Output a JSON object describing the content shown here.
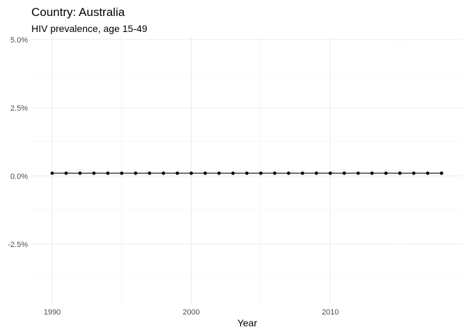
{
  "chart_data": {
    "type": "line",
    "title": "Country: Australia",
    "subtitle": "HIV prevalence, age 15-49",
    "xlabel": "Year",
    "ylabel": "",
    "xlim": [
      1988.5,
      2019.5
    ],
    "ylim": [
      -4.7,
      5.1
    ],
    "x_ticks": [
      1990,
      2000,
      2010
    ],
    "x_minor_ticks": [
      1995,
      2005,
      2015
    ],
    "y_ticks": [
      5.0,
      2.5,
      0.0,
      -2.5
    ],
    "y_tick_labels": [
      "5.0%",
      "2.5%",
      "0.0%",
      "-2.5%"
    ],
    "y_minor_ticks": [
      3.75,
      1.25,
      -1.25,
      -3.75
    ],
    "grid": true,
    "legend": "none",
    "series_color": "#000000",
    "x": [
      1990,
      1991,
      1992,
      1993,
      1994,
      1995,
      1996,
      1997,
      1998,
      1999,
      2000,
      2001,
      2002,
      2003,
      2004,
      2005,
      2006,
      2007,
      2008,
      2009,
      2010,
      2011,
      2012,
      2013,
      2014,
      2015,
      2016,
      2017,
      2018
    ],
    "values": [
      0.1,
      0.1,
      0.1,
      0.1,
      0.1,
      0.1,
      0.1,
      0.1,
      0.1,
      0.1,
      0.1,
      0.1,
      0.1,
      0.1,
      0.1,
      0.1,
      0.1,
      0.1,
      0.1,
      0.1,
      0.1,
      0.1,
      0.1,
      0.1,
      0.1,
      0.1,
      0.1,
      0.1,
      0.1
    ]
  }
}
